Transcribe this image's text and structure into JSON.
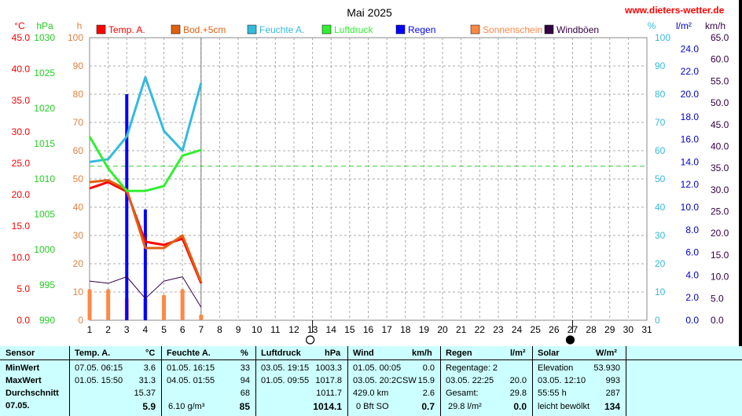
{
  "site": "www.dieters-wetter.de",
  "chart_data": {
    "type": "line",
    "title": "Mai 2025",
    "x": [
      1,
      2,
      3,
      4,
      5,
      6,
      7
    ],
    "x_ticks": [
      "1",
      "2",
      "3",
      "4",
      "5",
      "6",
      "7",
      "8",
      "9",
      "10",
      "11",
      "12",
      "13",
      "14",
      "15",
      "16",
      "17",
      "18",
      "19",
      "20",
      "21",
      "22",
      "23",
      "24",
      "25",
      "26",
      "27",
      "28",
      "29",
      "30",
      "31"
    ],
    "axes": {
      "temp": {
        "unit": "°C",
        "range": [
          0.0,
          45.0
        ],
        "ticks": [
          "0.0",
          "5.0",
          "10.0",
          "15.0",
          "20.0",
          "25.0",
          "30.0",
          "35.0",
          "40.0",
          "45.0"
        ]
      },
      "pressure": {
        "unit": "hPa",
        "range": [
          990,
          1030
        ],
        "ticks": [
          "990",
          "995",
          "1000",
          "1005",
          "1010",
          "1015",
          "1020",
          "1025",
          "1030"
        ]
      },
      "hours": {
        "unit": "h",
        "range": [
          0,
          100
        ],
        "ticks": [
          "0",
          "10",
          "20",
          "30",
          "40",
          "50",
          "60",
          "70",
          "80",
          "90",
          "100"
        ]
      },
      "humidity": {
        "unit": "%",
        "range": [
          0,
          100
        ],
        "ticks": [
          "0",
          "10",
          "20",
          "30",
          "40",
          "50",
          "60",
          "70",
          "80",
          "90",
          "100"
        ]
      },
      "rain": {
        "unit": "l/m²",
        "range": [
          0.0,
          25.0
        ],
        "ticks": [
          "0.0",
          "2.0",
          "4.0",
          "6.0",
          "8.0",
          "10.0",
          "12.0",
          "14.0",
          "16.0",
          "18.0",
          "20.0",
          "22.0",
          "24.0"
        ]
      },
      "wind": {
        "unit": "km/h",
        "range": [
          0.0,
          65.0
        ],
        "ticks": [
          "0.0",
          "5.0",
          "10.0",
          "15.0",
          "20.0",
          "25.0",
          "30.0",
          "35.0",
          "40.0",
          "45.0",
          "50.0",
          "55.0",
          "60.0",
          "65.0"
        ]
      }
    },
    "legend": [
      {
        "label": "Temp. A.",
        "color": "#ff0000"
      },
      {
        "label": "Bod.+5cm",
        "color": "#e06010"
      },
      {
        "label": "Feuchte A.",
        "color": "#33bbdd"
      },
      {
        "label": "Luftdruck",
        "color": "#33ee33"
      },
      {
        "label": "Regen",
        "color": "#0000ff"
      },
      {
        "label": "Sonnenschein",
        "color": "#ff8844"
      },
      {
        "label": "Windböen",
        "color": "#330044"
      }
    ],
    "series": [
      {
        "name": "Temp. A.",
        "axis": "temp",
        "color": "#ff0000",
        "values": [
          21.0,
          22.0,
          20.5,
          12.5,
          12.0,
          13.0,
          5.9
        ]
      },
      {
        "name": "Bod.+5cm",
        "axis": "temp",
        "color": "#e06010",
        "values": [
          22.0,
          22.3,
          20.8,
          11.5,
          11.5,
          13.5,
          6.1
        ]
      },
      {
        "name": "Feuchte A.",
        "axis": "humidity",
        "color": "#33bbdd",
        "values": [
          56,
          57,
          65,
          86,
          67,
          60,
          84
        ]
      },
      {
        "name": "Luftdruck",
        "axis": "pressure",
        "color": "#33ee33",
        "values": [
          1016.0,
          1011.5,
          1008.3,
          1008.3,
          1009.0,
          1013.3,
          1014.1
        ]
      },
      {
        "name": "Windböen",
        "axis": "wind",
        "color": "#330044",
        "values": [
          9.0,
          8.5,
          10.0,
          5.0,
          9.0,
          10.0,
          3.0
        ]
      }
    ],
    "bars": [
      {
        "name": "Regen",
        "axis": "rain",
        "color": "#0000ff",
        "x": [
          3,
          4
        ],
        "values": [
          20.0,
          9.8
        ]
      },
      {
        "name": "Sonnenschein",
        "axis": "hours",
        "color": "#ff8844",
        "x": [
          1,
          2,
          3,
          4,
          5,
          6,
          7
        ],
        "values": [
          11,
          11,
          8,
          8,
          9,
          11,
          2
        ]
      }
    ],
    "reference_line": {
      "axis": "humidity",
      "value": 54.5,
      "color": "#33cc33"
    },
    "moon_phases": [
      {
        "day": 13,
        "phase": "full"
      },
      {
        "day": 27,
        "phase": "new"
      }
    ]
  },
  "table": {
    "rowlabels": {
      "h": "Sensor",
      "min": "MinWert",
      "max": "MaxWert",
      "avg": "Durchschnitt",
      "cur": "07.05."
    },
    "temp": {
      "h": "Temp. A.",
      "u": "°C",
      "min_t": "07.05.  06:15",
      "min_v": "3.6",
      "max_t": "01.05.  15:50",
      "max_v": "31.3",
      "avg": "15.37",
      "cur": "5.9"
    },
    "hum": {
      "h": "Feuchte A.",
      "u": "%",
      "min_t": "01.05.  16:15",
      "min_v": "33",
      "max_t": "04.05.  01:55",
      "max_v": "94",
      "avg": "68",
      "cur_l": "6.10 g/m³",
      "cur": "85"
    },
    "press": {
      "h": "Luftdruck",
      "u": "hPa",
      "min_t": "03.05.  19:15",
      "min_v": "1003.3",
      "max_t": "01.05.  09:55",
      "max_v": "1017.8",
      "avg": "1011.7",
      "cur": "1014.1"
    },
    "wind": {
      "h": "Wind",
      "u": "km/h",
      "min_t": "01.05.  00:05",
      "min_v": "0.0",
      "max_t": "03.05.  20:2CSW",
      "max_v": "15.9",
      "avg_l": "429.0 km",
      "avg": "2.6",
      "cur_l": "0 Bft SO",
      "cur": "0.7"
    },
    "rain": {
      "h": "Regen",
      "u": "l/m²",
      "min_l": "Regentage: 2",
      "max_t": "03.05.  22:25",
      "max_v": "20.0",
      "avg_l": "Gesamt:",
      "avg": "29.8",
      "cur_l": "29.8 l/m²",
      "cur": "0.0"
    },
    "solar": {
      "h": "Solar",
      "u": "W/m²",
      "min_l": "Elevation",
      "min_v": "53.930",
      "max_t": "03.05.  12:10",
      "max_v": "993",
      "avg_l": "55:55 h",
      "avg": "287",
      "cur_l": "leicht bewölkt",
      "cur": "134"
    }
  }
}
